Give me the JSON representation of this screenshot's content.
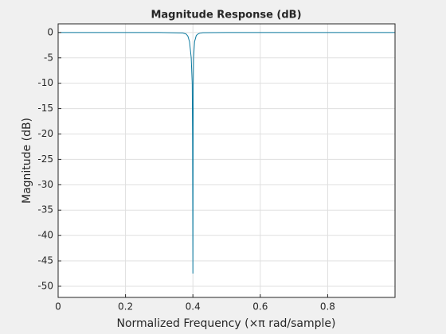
{
  "chart_data": {
    "type": "line",
    "title": "Magnitude Response (dB)",
    "xlabel": "Normalized Frequency (×π rad/sample)",
    "ylabel": "Magnitude (dB)",
    "series": [
      {
        "color": "#0b7aa0",
        "x": [
          0,
          0.3,
          0.37,
          0.38,
          0.385,
          0.39,
          0.395,
          0.398,
          0.399,
          0.4,
          0.401,
          0.402,
          0.405,
          0.41,
          0.415,
          0.42,
          0.43,
          0.5,
          1
        ],
        "values": [
          0,
          0,
          -0.1,
          -0.3,
          -0.7,
          -1.8,
          -5,
          -10,
          -20.8,
          -47.5,
          -10.5,
          -5,
          -1.8,
          -0.6,
          -0.3,
          -0.15,
          -0.05,
          0,
          0
        ]
      }
    ],
    "xlim": [
      0,
      1
    ],
    "ylim": [
      -52.2,
      1.7
    ],
    "xticks": [
      0,
      0.2,
      0.4,
      0.6,
      0.8
    ],
    "yticks": [
      0,
      -5,
      -10,
      -15,
      -20,
      -25,
      -30,
      -35,
      -40,
      -45,
      -50
    ],
    "grid": true
  }
}
